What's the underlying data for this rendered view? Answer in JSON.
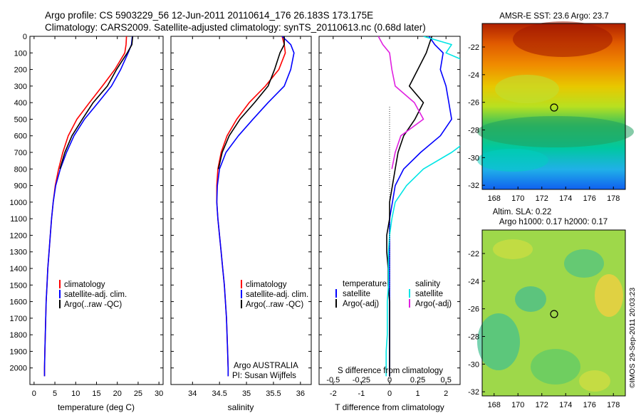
{
  "header": {
    "line1": "Argo profile: CS 5903229_56 12-Jun-2011 20110614_176 26.183S 173.175E",
    "line2": "Climatology: CARS2009. Satellite-adjusted climatology: synTS_20110613.nc (0.68d later)"
  },
  "colors": {
    "climatology": "#ff0000",
    "satellite_adj": "#0000ff",
    "argo": "#000000",
    "salinity_satellite": "#00e5e5",
    "salinity_argo": "#e020e0"
  },
  "legend": {
    "climatology": "climatology",
    "satellite_adj": "satellite-adj. clim.",
    "argo_raw": "Argo(..raw -QC)",
    "temperature_head": "temperature",
    "salinity_head": "salinity",
    "satellite": "satellite",
    "argo_adj": "Argo(-adj)"
  },
  "annotations": {
    "institution": "Argo AUSTRALIA",
    "pi": "PI: Susan Wijffels",
    "s_diff_label": "S difference from climatology",
    "credit": "©IMOS 29-Sep-2011 20:03:23"
  },
  "chart_data": [
    {
      "id": "temperature-profile",
      "type": "line",
      "xlabel": "temperature (deg C)",
      "ylabel": "",
      "xlim": [
        -1,
        31
      ],
      "ylim": [
        2100,
        0
      ],
      "xticks": [
        0,
        5,
        10,
        15,
        20,
        25,
        30
      ],
      "yticks": [
        0,
        100,
        200,
        300,
        400,
        500,
        600,
        700,
        800,
        900,
        1000,
        1100,
        1200,
        1300,
        1400,
        1500,
        1600,
        1700,
        1800,
        1900,
        2000
      ],
      "depth": [
        0,
        50,
        100,
        200,
        300,
        400,
        500,
        600,
        700,
        800,
        900,
        1000,
        1100,
        1200,
        1300,
        1400,
        1500,
        1600,
        1700,
        1800,
        1900,
        2000,
        2050
      ],
      "series": [
        {
          "name": "climatology",
          "color_key": "climatology",
          "values": [
            22.2,
            22.1,
            21.8,
            19.4,
            16.4,
            13.3,
            10.3,
            8.2,
            6.9,
            5.9,
            5.1,
            4.6,
            4.2,
            3.9,
            3.6,
            3.3,
            3.1,
            2.9,
            2.8,
            2.7,
            2.6,
            2.5,
            2.5
          ]
        },
        {
          "name": "satellite-adj. clim.",
          "color_key": "satellite_adj",
          "values": [
            23.6,
            23.4,
            22.6,
            20.8,
            18.6,
            15.4,
            12.1,
            9.6,
            7.8,
            6.3,
            5.2,
            4.6,
            4.2,
            3.9,
            3.6,
            3.3,
            3.1,
            2.9,
            2.8,
            2.7,
            2.6,
            2.5,
            2.5
          ]
        },
        {
          "name": "Argo(..raw -QC)",
          "color_key": "argo",
          "values": [
            23.7,
            23.5,
            22.4,
            19.8,
            17.6,
            14.2,
            11.6,
            9.1,
            7.4,
            6.2
          ]
        }
      ]
    },
    {
      "id": "salinity-profile",
      "type": "line",
      "xlabel": "salinity",
      "ylabel": "",
      "xlim": [
        33.6,
        36.2
      ],
      "ylim": [
        2100,
        0
      ],
      "xticks": [
        34,
        34.5,
        35,
        35.5,
        36
      ],
      "depth": [
        0,
        50,
        100,
        200,
        300,
        400,
        500,
        600,
        700,
        800,
        900,
        1000,
        1100,
        1200,
        1300,
        1400,
        1500,
        1600,
        1700,
        1800,
        1900,
        2000,
        2050
      ],
      "series": [
        {
          "name": "climatology",
          "color_key": "climatology",
          "values": [
            35.66,
            35.7,
            35.72,
            35.6,
            35.35,
            35.05,
            34.82,
            34.64,
            34.53,
            34.47,
            34.45,
            34.45,
            34.47,
            34.5,
            34.53,
            34.56,
            34.59,
            34.61,
            34.63,
            34.64,
            34.65,
            34.66,
            34.66
          ]
        },
        {
          "name": "satellite-adj. clim.",
          "color_key": "satellite_adj",
          "values": [
            35.66,
            35.82,
            35.88,
            35.82,
            35.7,
            35.4,
            35.12,
            34.85,
            34.62,
            34.5,
            34.46,
            34.45,
            34.47,
            34.5,
            34.53,
            34.56,
            34.59,
            34.61,
            34.63,
            34.64,
            34.65,
            34.66,
            34.66
          ]
        },
        {
          "name": "Argo(..raw -QC)",
          "color_key": "argo",
          "values": [
            35.7,
            35.7,
            35.62,
            35.52,
            35.4,
            35.15,
            34.88,
            34.68,
            34.55,
            34.48
          ]
        }
      ]
    },
    {
      "id": "difference-profile",
      "type": "line",
      "xlabel": "T difference from climatology",
      "ylabel": "",
      "xlim": [
        -2.5,
        2.5
      ],
      "ylim": [
        2100,
        0
      ],
      "xticks": [
        -2,
        -1,
        0,
        1,
        2
      ],
      "x2label": "S difference from climatology",
      "x2ticks": [
        -0.5,
        -0.25,
        0,
        0.25,
        0.5
      ],
      "x2tick_labels": [
        "-0.5",
        "-0.25",
        "0",
        "0.25",
        "0.5"
      ],
      "depth": [
        0,
        50,
        100,
        200,
        300,
        400,
        500,
        600,
        700,
        800,
        900,
        1000,
        1100,
        1200,
        1300,
        1400,
        1500,
        1600,
        1700,
        1800,
        1900,
        2000,
        2050
      ],
      "series": [
        {
          "name": "temperature satellite",
          "color_key": "satellite_adj",
          "values": [
            1.4,
            1.6,
            1.9,
            1.8,
            2.0,
            2.1,
            2.2,
            1.8,
            1.1,
            0.5,
            0.2,
            0.1,
            0.0,
            0.0,
            0.0,
            0.0,
            0.0,
            0.0,
            0.0,
            0.0,
            0.0,
            0.0,
            0.0
          ]
        },
        {
          "name": "temperature Argo(-adj)",
          "color_key": "argo",
          "values": [
            1.5,
            1.4,
            1.3,
            1.0,
            0.7,
            1.2,
            0.9,
            0.5,
            0.3,
            0.2,
            0.1,
            0.0,
            0.0,
            -0.1,
            -0.1,
            -0.05,
            -0.05,
            0.0,
            0.0,
            0.0,
            0.0,
            0.0,
            0.0
          ]
        },
        {
          "name": "salinity satellite",
          "color_key": "salinity_satellite",
          "values": [
            0.3,
            0.55,
            0.5,
            0.85,
            0.9,
            0.75,
            0.65,
            0.75,
            0.55,
            0.3,
            0.15,
            0.05,
            0.02,
            0.0,
            -0.01,
            -0.01,
            -0.01,
            -0.02,
            -0.02,
            -0.02,
            -0.03,
            -0.03,
            -0.03
          ]
        },
        {
          "name": "salinity Argo(-adj)",
          "color_key": "salinity_argo",
          "values": [
            -0.1,
            -0.06,
            0.0,
            0.02,
            0.05,
            0.22,
            0.3,
            0.1,
            0.05,
            0.02
          ]
        }
      ]
    },
    {
      "id": "sst-map",
      "type": "heatmap",
      "title": "AMSR-E SST: 23.6 Argo: 23.7",
      "xlim": [
        167,
        179
      ],
      "ylim": [
        -32.3,
        -20.3
      ],
      "xticks": [
        168,
        170,
        172,
        174,
        176,
        178
      ],
      "yticks": [
        -22,
        -24,
        -26,
        -28,
        -30,
        -32
      ],
      "marker": {
        "lon": 173.2,
        "lat": -26.2
      }
    },
    {
      "id": "sla-map",
      "type": "heatmap",
      "title": "Altim. SLA: 0.22",
      "subtitle": "Argo h1000: 0.17 h2000: 0.17",
      "xlim": [
        167,
        179
      ],
      "ylim": [
        -32.3,
        -20.3
      ],
      "xticks": [
        168,
        170,
        172,
        174,
        176,
        178
      ],
      "yticks": [
        -22,
        -24,
        -26,
        -28,
        -30,
        -32
      ],
      "marker": {
        "lon": 173.2,
        "lat": -26.2
      }
    }
  ]
}
